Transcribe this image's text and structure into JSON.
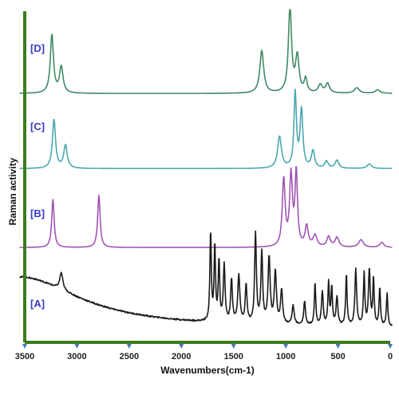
{
  "chart_data": {
    "type": "line",
    "title": "",
    "xlabel": "Wavenumbers(cm-1)",
    "ylabel": "Raman activity",
    "xlim": [
      3500,
      0
    ],
    "x_reversed": true,
    "xticks": [
      3500,
      3000,
      2500,
      2000,
      1500,
      1000,
      500,
      0
    ],
    "grid": false,
    "legend": "none",
    "axis_color": "#3a7d1e",
    "tick_marker_color": "#4a78b8",
    "series_label_color": "#3a3acc",
    "series": [
      {
        "name": "[D]",
        "color": "#3f8a63",
        "baseline": 0.01,
        "noise": 0,
        "peaks": [
          [
            3240,
            0.85,
            18
          ],
          [
            3150,
            0.38,
            20
          ],
          [
            1230,
            0.62,
            22
          ],
          [
            960,
            1.25,
            18
          ],
          [
            890,
            0.52,
            20
          ],
          [
            810,
            0.2,
            16
          ],
          [
            670,
            0.12,
            22
          ],
          [
            600,
            0.14,
            22
          ],
          [
            320,
            0.08,
            28
          ],
          [
            120,
            0.05,
            28
          ]
        ]
      },
      {
        "name": "[C]",
        "color": "#4aa8b0",
        "baseline": 0.01,
        "noise": 0,
        "peaks": [
          [
            3220,
            0.85,
            18
          ],
          [
            3110,
            0.4,
            20
          ],
          [
            1060,
            0.55,
            22
          ],
          [
            910,
            1.3,
            14
          ],
          [
            850,
            1.0,
            16
          ],
          [
            740,
            0.3,
            18
          ],
          [
            610,
            0.12,
            20
          ],
          [
            510,
            0.14,
            20
          ],
          [
            200,
            0.08,
            26
          ]
        ]
      },
      {
        "name": "[B]",
        "color": "#a055b4",
        "baseline": 0.01,
        "noise": 0,
        "peaks": [
          [
            3230,
            0.75,
            14
          ],
          [
            2790,
            0.82,
            14
          ],
          [
            1020,
            1.05,
            16
          ],
          [
            950,
            1.1,
            16
          ],
          [
            900,
            1.15,
            14
          ],
          [
            800,
            0.32,
            18
          ],
          [
            720,
            0.18,
            22
          ],
          [
            590,
            0.16,
            20
          ],
          [
            510,
            0.15,
            22
          ],
          [
            280,
            0.12,
            26
          ],
          [
            80,
            0.08,
            22
          ]
        ]
      },
      {
        "name": "[A]",
        "color": "#1a1a1a",
        "baseline": 0.06,
        "noise": 0.015,
        "peaks": [
          [
            3550,
            0.55,
            700
          ],
          [
            3150,
            0.18,
            18
          ],
          [
            1720,
            0.95,
            8
          ],
          [
            1680,
            0.8,
            8
          ],
          [
            1640,
            0.65,
            8
          ],
          [
            1590,
            0.6,
            10
          ],
          [
            1520,
            0.45,
            10
          ],
          [
            1450,
            0.5,
            12
          ],
          [
            1380,
            0.4,
            10
          ],
          [
            1290,
            0.95,
            10
          ],
          [
            1230,
            0.75,
            10
          ],
          [
            1160,
            0.7,
            12
          ],
          [
            1100,
            0.55,
            12
          ],
          [
            1040,
            0.35,
            12
          ],
          [
            930,
            0.2,
            12
          ],
          [
            820,
            0.25,
            10
          ],
          [
            720,
            0.45,
            8
          ],
          [
            650,
            0.35,
            10
          ],
          [
            590,
            0.45,
            8
          ],
          [
            560,
            0.4,
            8
          ],
          [
            510,
            0.3,
            10
          ],
          [
            420,
            0.55,
            8
          ],
          [
            330,
            0.6,
            10
          ],
          [
            250,
            0.55,
            8
          ],
          [
            200,
            0.6,
            10
          ],
          [
            160,
            0.5,
            8
          ],
          [
            100,
            0.4,
            8
          ],
          [
            30,
            0.35,
            8
          ]
        ]
      }
    ]
  }
}
